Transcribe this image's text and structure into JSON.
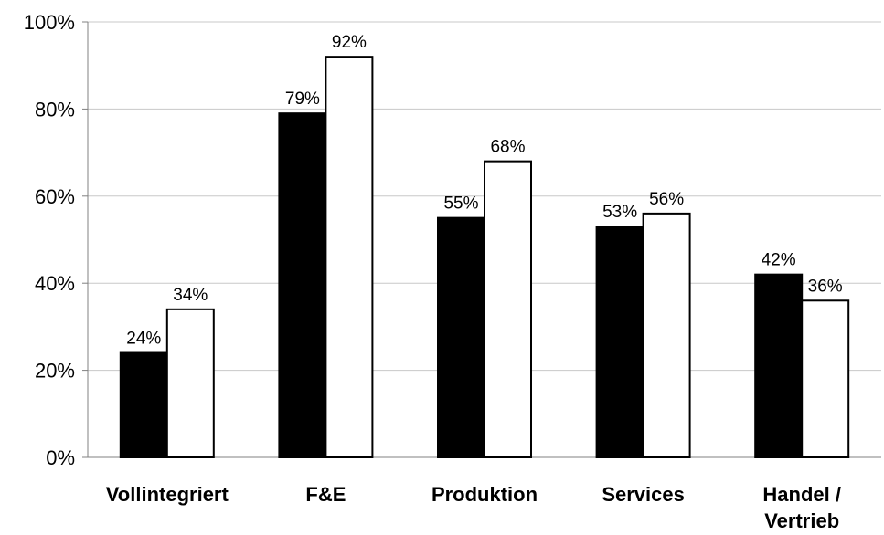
{
  "chart_data": {
    "type": "bar",
    "categories": [
      "Vollintegriert",
      "F&E",
      "Produktion",
      "Services",
      "Handel / Vertrieb"
    ],
    "series": [
      {
        "values": [
          24,
          79,
          55,
          53,
          42
        ],
        "labels": [
          "24%",
          "79%",
          "55%",
          "53%",
          "42%"
        ],
        "color": "#000000"
      },
      {
        "values": [
          34,
          92,
          68,
          56,
          36
        ],
        "labels": [
          "34%",
          "92%",
          "68%",
          "56%",
          "36%"
        ],
        "color": "#ffffff"
      }
    ],
    "ylim": [
      0,
      100
    ],
    "yticks": [
      "0%",
      "20%",
      "40%",
      "60%",
      "80%",
      "100%"
    ],
    "grid": true,
    "legend": "none"
  }
}
